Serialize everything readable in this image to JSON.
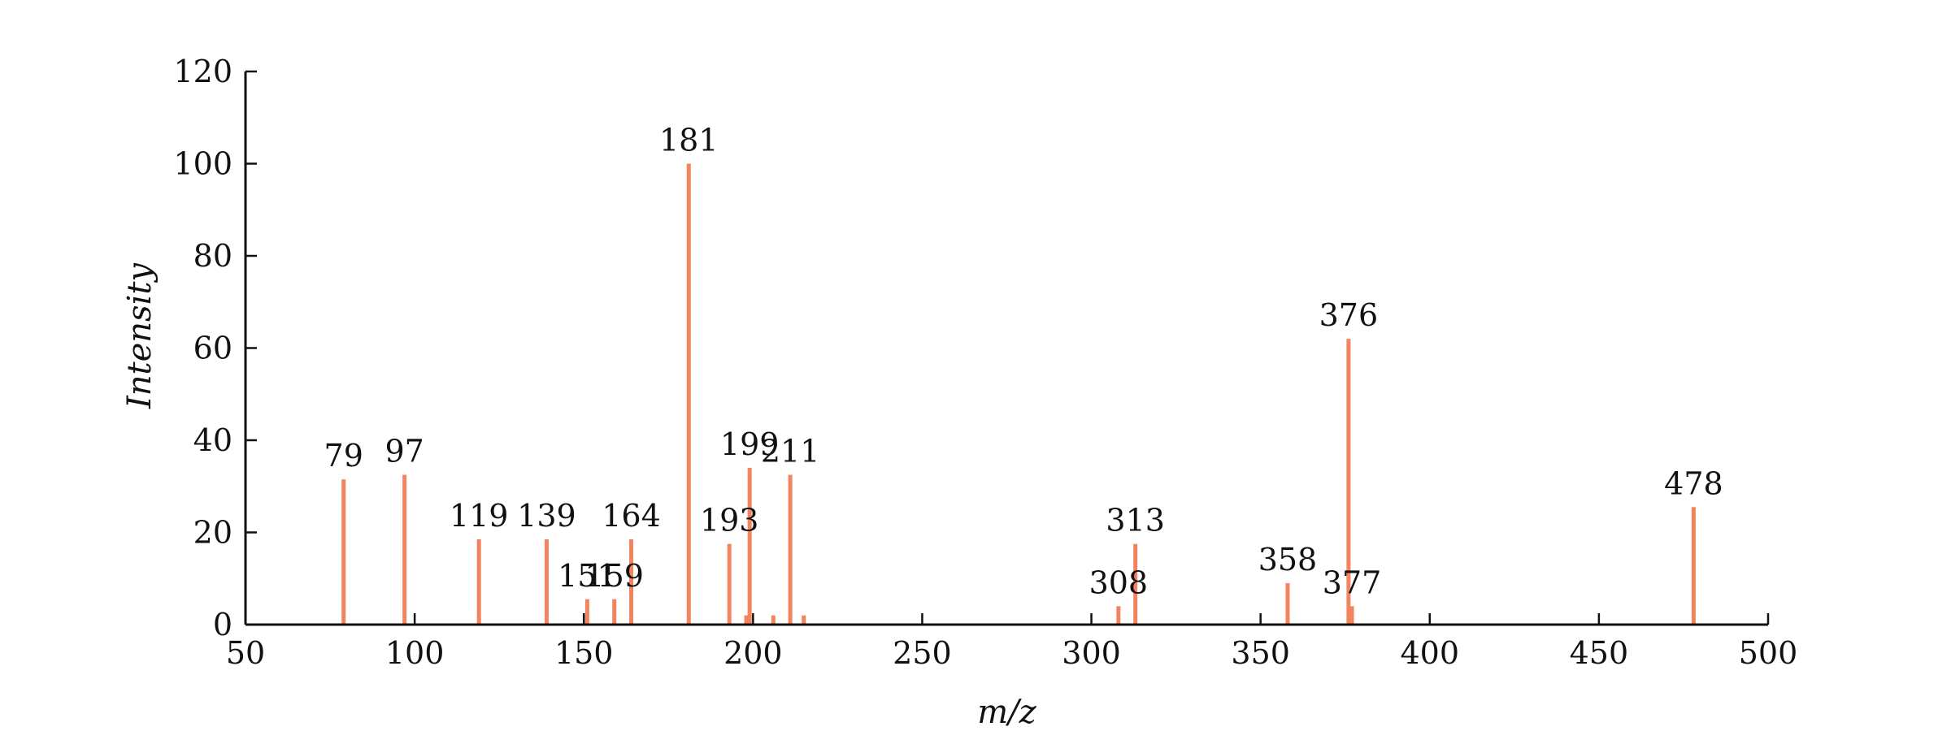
{
  "chart_data": {
    "type": "bar",
    "title": "",
    "xlabel": "m/z",
    "ylabel": "Intensity",
    "xlim": [
      50,
      500
    ],
    "ylim": [
      0,
      120
    ],
    "xticks": [
      50,
      100,
      150,
      200,
      250,
      300,
      350,
      400,
      450,
      500
    ],
    "yticks": [
      0,
      20,
      40,
      60,
      80,
      100,
      120
    ],
    "grid": false,
    "legend": "none",
    "bar_color": "#F4845F",
    "peaks": [
      {
        "mz": 79,
        "intensity": 31.5,
        "label": "79"
      },
      {
        "mz": 97,
        "intensity": 32.5,
        "label": "97"
      },
      {
        "mz": 119,
        "intensity": 18.5,
        "label": "119"
      },
      {
        "mz": 139,
        "intensity": 18.5,
        "label": "139"
      },
      {
        "mz": 151,
        "intensity": 5.5,
        "label": "151"
      },
      {
        "mz": 159,
        "intensity": 5.5,
        "label": "159"
      },
      {
        "mz": 164,
        "intensity": 18.5,
        "label": "164"
      },
      {
        "mz": 181,
        "intensity": 100,
        "label": "181"
      },
      {
        "mz": 193,
        "intensity": 17.5,
        "label": "193"
      },
      {
        "mz": 198,
        "intensity": 2,
        "label": ""
      },
      {
        "mz": 199,
        "intensity": 34,
        "label": "199"
      },
      {
        "mz": 206,
        "intensity": 2,
        "label": ""
      },
      {
        "mz": 211,
        "intensity": 32.5,
        "label": "211"
      },
      {
        "mz": 215,
        "intensity": 2,
        "label": ""
      },
      {
        "mz": 308,
        "intensity": 4,
        "label": "308"
      },
      {
        "mz": 313,
        "intensity": 17.5,
        "label": "313"
      },
      {
        "mz": 358,
        "intensity": 9,
        "label": "358"
      },
      {
        "mz": 376,
        "intensity": 62,
        "label": "376"
      },
      {
        "mz": 377,
        "intensity": 4,
        "label": "377"
      },
      {
        "mz": 478,
        "intensity": 25.5,
        "label": "478"
      }
    ]
  }
}
